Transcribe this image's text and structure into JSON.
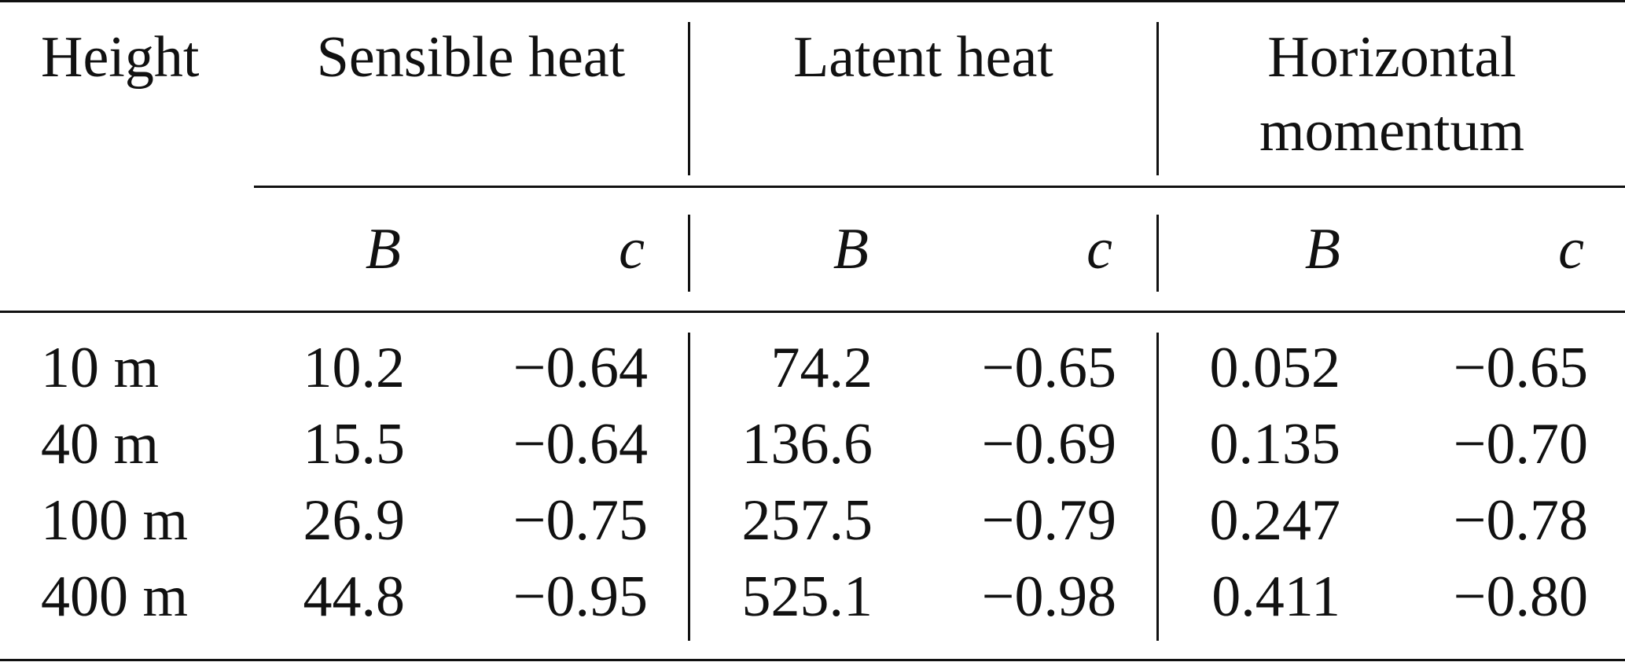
{
  "table": {
    "header": {
      "height": "Height",
      "groups": [
        "Sensible heat",
        "Latent heat",
        "Horizontal momentum"
      ],
      "group3_line1": "Horizontal",
      "group3_line2": "momentum",
      "subcols": [
        "B",
        "c",
        "B",
        "c",
        "B",
        "c"
      ]
    },
    "rows": [
      {
        "height": "10 m",
        "values": [
          "10.2",
          "−0.64",
          "74.2",
          "−0.65",
          "0.052",
          "−0.65"
        ]
      },
      {
        "height": "40 m",
        "values": [
          "15.5",
          "−0.64",
          "136.6",
          "−0.69",
          "0.135",
          "−0.70"
        ]
      },
      {
        "height": "100 m",
        "values": [
          "26.9",
          "−0.75",
          "257.5",
          "−0.79",
          "0.247",
          "−0.78"
        ]
      },
      {
        "height": "400 m",
        "values": [
          "44.8",
          "−0.95",
          "525.1",
          "−0.98",
          "0.411",
          "−0.80"
        ]
      }
    ]
  }
}
